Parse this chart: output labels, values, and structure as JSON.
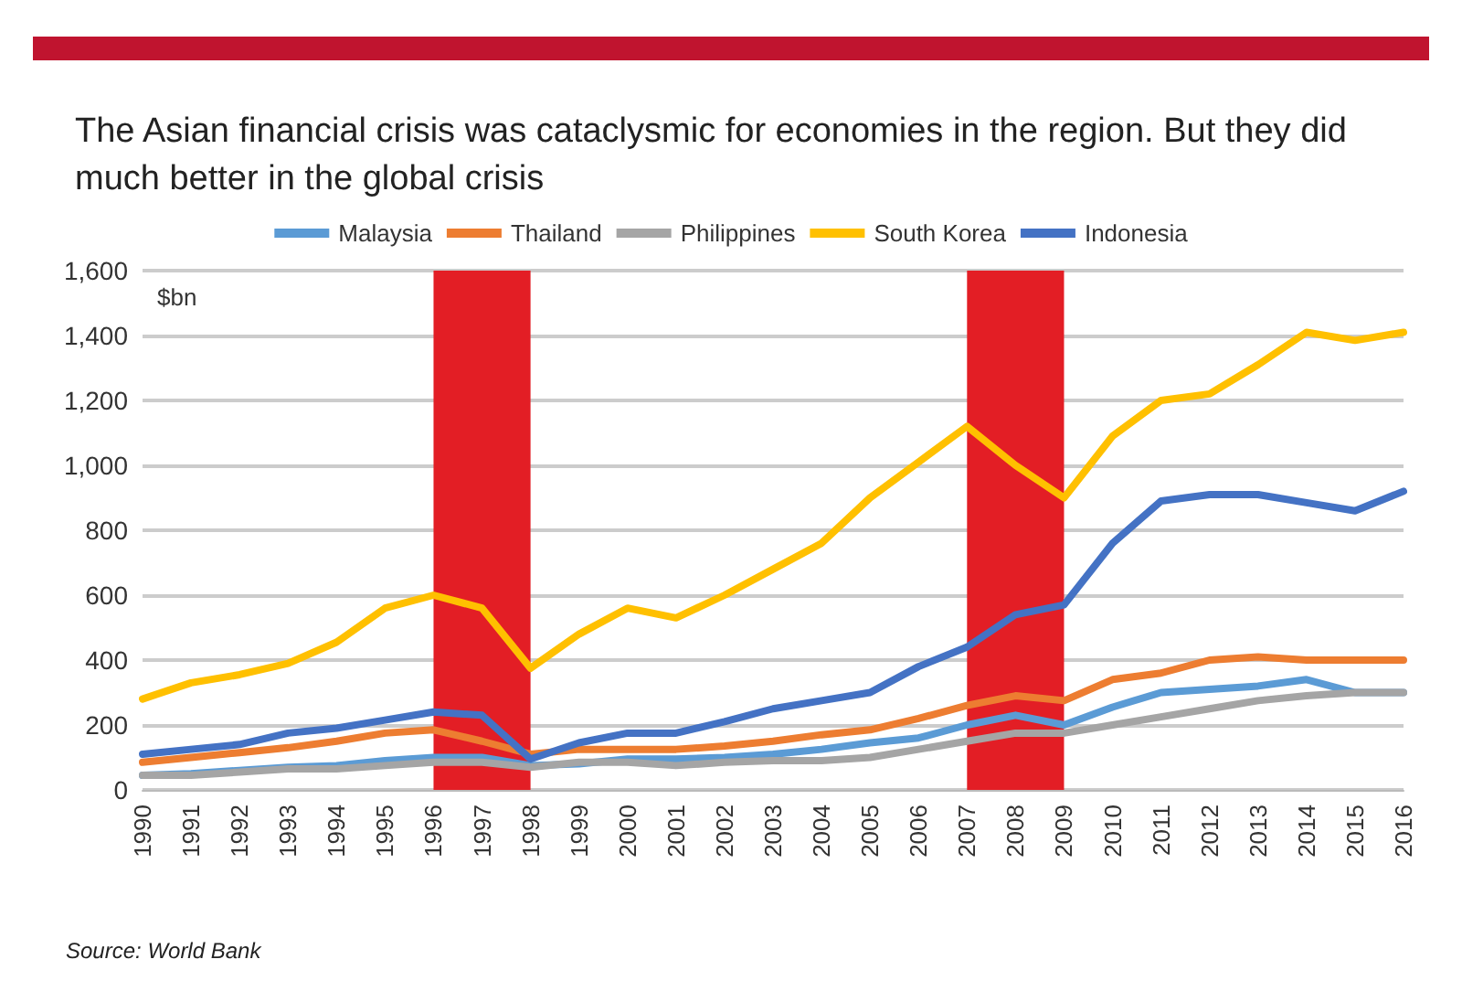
{
  "chart_data": {
    "type": "line",
    "title": "The Asian financial crisis was cataclysmic for economies in the region. But they did much better in the global crisis",
    "ylabel": "$bn",
    "annotations": [
      "Source: World Bank"
    ],
    "categories": [
      "1990",
      "1991",
      "1992",
      "1993",
      "1994",
      "1995",
      "1996",
      "1997",
      "1998",
      "1999",
      "2000",
      "2001",
      "2002",
      "2003",
      "2004",
      "2005",
      "2006",
      "2007",
      "2008",
      "2009",
      "2010",
      "2011",
      "2012",
      "2013",
      "2014",
      "2015",
      "2016"
    ],
    "series": [
      {
        "name": "Malaysia",
        "color": "#5b9bd5",
        "values": [
          45,
          50,
          60,
          70,
          75,
          90,
          100,
          100,
          75,
          80,
          95,
          95,
          100,
          110,
          125,
          145,
          160,
          200,
          230,
          200,
          255,
          300,
          310,
          320,
          340,
          300,
          300
        ]
      },
      {
        "name": "Thailand",
        "color": "#ed7d31",
        "values": [
          85,
          100,
          115,
          130,
          150,
          175,
          185,
          150,
          110,
          125,
          125,
          125,
          135,
          150,
          170,
          185,
          220,
          260,
          290,
          275,
          340,
          360,
          400,
          410,
          400,
          400,
          400
        ]
      },
      {
        "name": "Philippines",
        "color": "#a5a5a5",
        "values": [
          45,
          45,
          55,
          65,
          65,
          75,
          85,
          85,
          70,
          85,
          85,
          75,
          85,
          90,
          90,
          100,
          125,
          150,
          175,
          175,
          200,
          225,
          250,
          275,
          290,
          300,
          300
        ]
      },
      {
        "name": "South Korea",
        "color": "#ffc000",
        "values": [
          280,
          330,
          355,
          390,
          455,
          560,
          600,
          560,
          375,
          480,
          560,
          530,
          600,
          680,
          760,
          900,
          1010,
          1120,
          1000,
          900,
          1090,
          1200,
          1220,
          1310,
          1410,
          1385,
          1410
        ]
      },
      {
        "name": "Indonesia",
        "color": "#4472c4",
        "values": [
          110,
          125,
          140,
          175,
          190,
          215,
          240,
          230,
          95,
          145,
          175,
          175,
          210,
          250,
          275,
          300,
          380,
          440,
          540,
          570,
          760,
          890,
          910,
          910,
          885,
          860,
          920
        ]
      }
    ],
    "bands": [
      {
        "axis": "x",
        "from": "1996",
        "to": "1998",
        "color": "#e31e25"
      },
      {
        "axis": "x",
        "from": "2007",
        "to": "2009",
        "color": "#e31e25"
      }
    ],
    "ylim": [
      0,
      1600
    ],
    "yticks": [
      {
        "value": 0,
        "label": "0"
      },
      {
        "value": 200,
        "label": "200"
      },
      {
        "value": 400,
        "label": "400"
      },
      {
        "value": 600,
        "label": "600"
      },
      {
        "value": 800,
        "label": "800"
      },
      {
        "value": 1000,
        "label": "1,000"
      },
      {
        "value": 1200,
        "label": "1,200"
      },
      {
        "value": 1400,
        "label": "1,400"
      },
      {
        "value": 1600,
        "label": "1,600"
      }
    ],
    "grid": "y",
    "legend": "top",
    "marker": "none",
    "line_style": "solid"
  }
}
